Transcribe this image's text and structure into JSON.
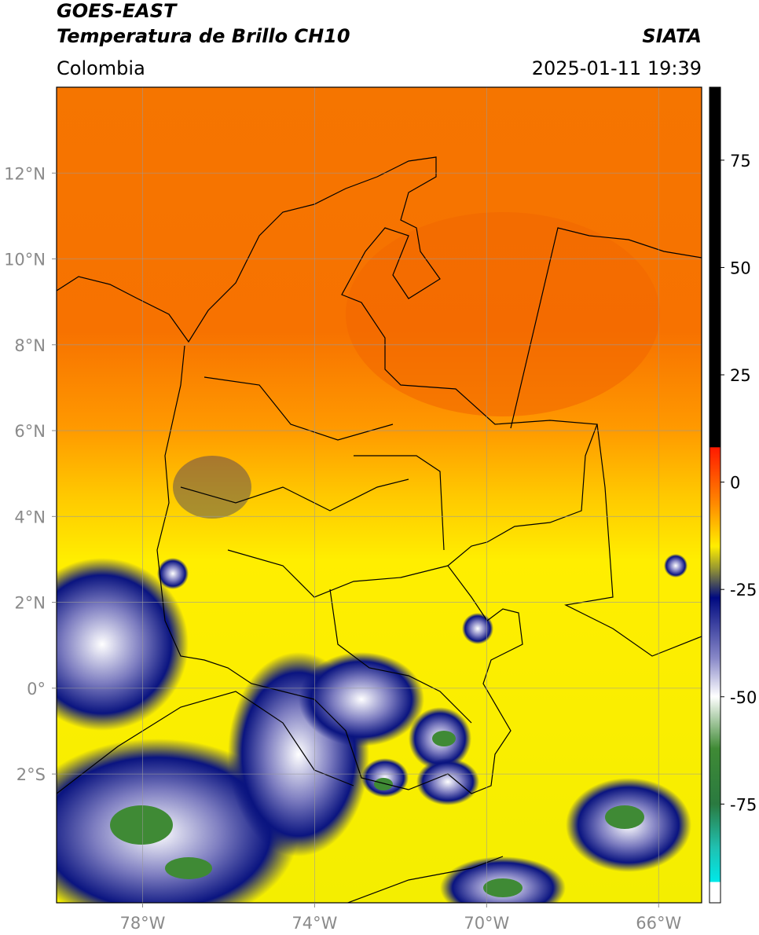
{
  "header": {
    "title": "GOES-EAST",
    "subtitle": "Temperatura de Brillo CH10",
    "source": "SIATA",
    "region": "Colombia",
    "datetime": "2025-01-11 19:39"
  },
  "map": {
    "xlim": [
      -80,
      -65
    ],
    "ylim": [
      -5,
      14
    ],
    "xticks": [
      {
        "value": -78,
        "label": "78°W"
      },
      {
        "value": -74,
        "label": "74°W"
      },
      {
        "value": -70,
        "label": "70°W"
      },
      {
        "value": -66,
        "label": "66°W"
      }
    ],
    "yticks": [
      {
        "value": 12,
        "label": "12°N"
      },
      {
        "value": 10,
        "label": "10°N"
      },
      {
        "value": 8,
        "label": "8°N"
      },
      {
        "value": 6,
        "label": "6°N"
      },
      {
        "value": 4,
        "label": "4°N"
      },
      {
        "value": 2,
        "label": "2°N"
      },
      {
        "value": 0,
        "label": "0°"
      },
      {
        "value": -2,
        "label": "2°S"
      }
    ]
  },
  "colorbar": {
    "ylim": [
      -98,
      92
    ],
    "yticks": [
      75,
      50,
      25,
      0,
      -25,
      -50,
      -75
    ]
  }
}
